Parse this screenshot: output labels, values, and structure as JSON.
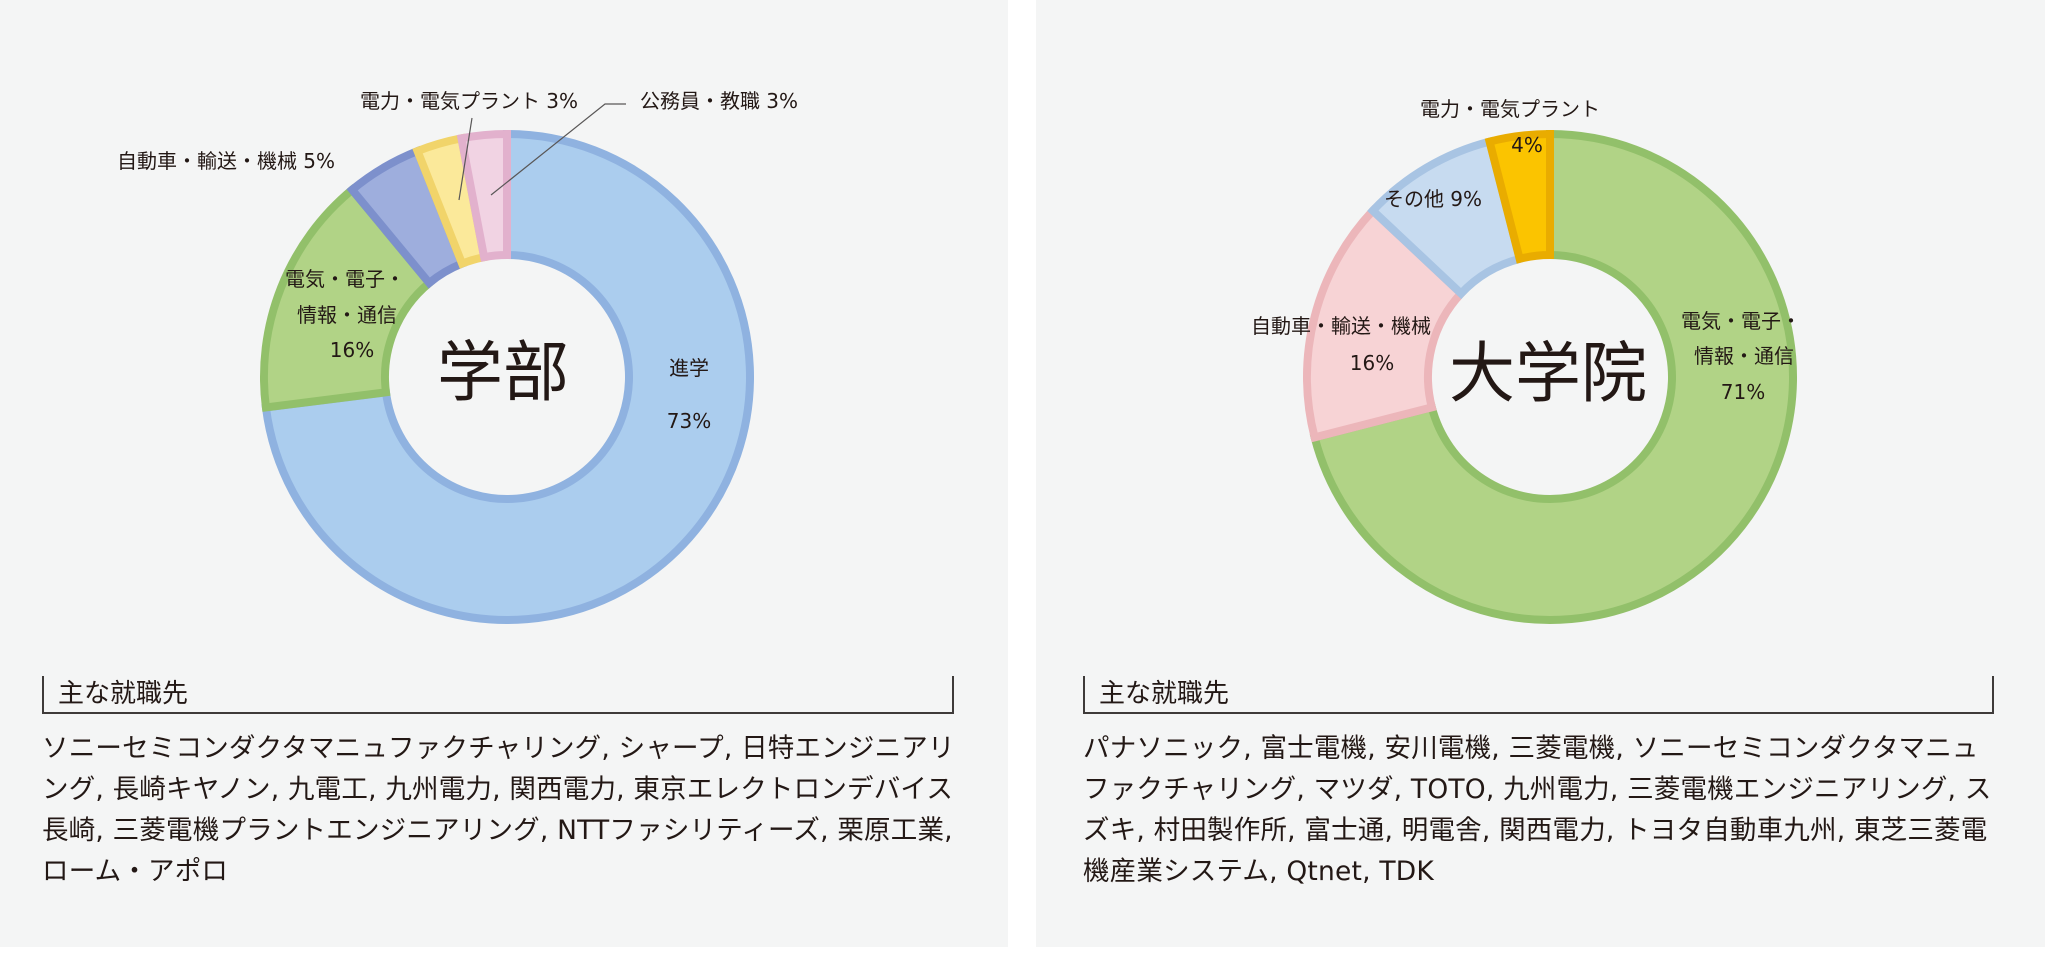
{
  "chart_data": [
    {
      "type": "pie",
      "center_label": "学部",
      "slices": [
        {
          "label": "進学",
          "value": 73,
          "value_text": "73%",
          "color": "#abcdee",
          "border": "#8fb2e0"
        },
        {
          "label": "電気・電子・情報・通信",
          "value": 16,
          "value_text": "16%",
          "color": "#b1d386",
          "border": "#92c06a"
        },
        {
          "label": "自動車・輸送・機械",
          "value": 5,
          "value_text": "5%",
          "color": "#9eaedd",
          "border": "#7d90cc"
        },
        {
          "label": "電力・電気プラント",
          "value": 3,
          "value_text": "3%",
          "color": "#fbe99a",
          "border": "#f1d46a"
        },
        {
          "label": "公務員・教職",
          "value": 3,
          "value_text": "3%",
          "color": "#f1d3e3",
          "border": "#e2b1cd"
        }
      ],
      "labels": {
        "shingaku": "進学",
        "shingaku_pct": "73%",
        "denki_l1": "電気・電子・",
        "denki_l2": "情報・通信",
        "denki_pct": "16%",
        "jidosha": "自動車・輸送・機械 5%",
        "denryoku": "電力・電気プラント 3%",
        "komuin": "公務員・教職 3%"
      }
    },
    {
      "type": "pie",
      "center_label": "大学院",
      "slices": [
        {
          "label": "電気・電子・情報・通信",
          "value": 71,
          "value_text": "71%",
          "color": "#b1d386",
          "border": "#92c06a"
        },
        {
          "label": "自動車・輸送・機械",
          "value": 16,
          "value_text": "16%",
          "color": "#f7d3d5",
          "border": "#ecb6ba"
        },
        {
          "label": "その他",
          "value": 9,
          "value_text": "9%",
          "color": "#c7dbf0",
          "border": "#a8c4e3"
        },
        {
          "label": "電力・電気プラント",
          "value": 4,
          "value_text": "4%",
          "color": "#fbc400",
          "border": "#e9ac00"
        }
      ],
      "labels": {
        "denki_l1": "電気・電子・",
        "denki_l2": "情報・通信",
        "denki_pct": "71%",
        "jidosha_l1": "自動車・輸送・機械",
        "jidosha_pct": "16%",
        "sonota": "その他 9%",
        "denryoku_l1": "電力・電気プラント",
        "denryoku_pct": "4%"
      }
    }
  ],
  "left_panel": {
    "heading": "主な就職先",
    "employers": "ソニーセミコンダクタマニュファクチャリング, シャープ, 日特エンジニアリング, 長崎キヤノン, 九電工, 九州電力, 関西電力, 東京エレクトロンデバイス長崎, 三菱電機プラントエンジニアリング, NTTファシリティーズ, 栗原工業, ローム・アポロ"
  },
  "right_panel": {
    "heading": "主な就職先",
    "employers": "パナソニック, 富士電機, 安川電機, 三菱電機, ソニーセミコンダクタマニュファクチャリング, マツダ, TOTO, 九州電力, 三菱電機エンジニアリング, スズキ, 村田製作所, 富士通, 明電舎, 関西電力, トヨタ自動車九州, 東芝三菱電機産業システム, Qtnet, TDK"
  }
}
